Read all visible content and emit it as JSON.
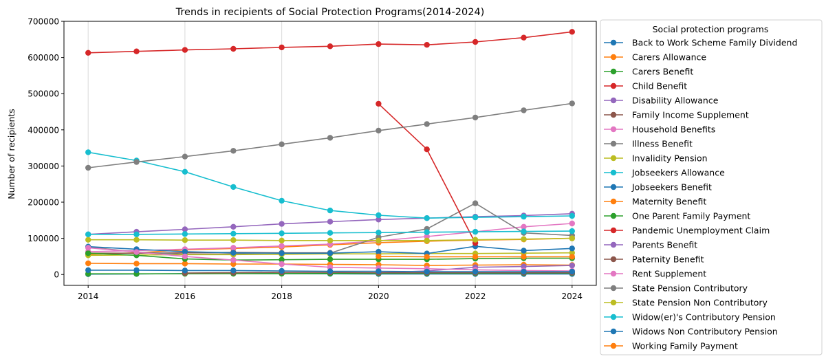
{
  "chart_data": {
    "type": "line",
    "title": "Trends in recipients of Social Protection Programs(2014-2024)",
    "xlabel": "",
    "ylabel": "Number of recipients",
    "xlim": [
      2013.5,
      2024.5
    ],
    "ylim": [
      -30000,
      700000
    ],
    "x_ticks": [
      2014,
      2016,
      2018,
      2020,
      2022,
      2024
    ],
    "y_ticks": [
      0,
      100000,
      200000,
      300000,
      400000,
      500000,
      600000,
      700000
    ],
    "grid": "vertical",
    "legend_title": "Social protection programs",
    "legend_position": "outside-right",
    "x": [
      2014,
      2015,
      2016,
      2017,
      2018,
      2019,
      2020,
      2021,
      2022,
      2023,
      2024
    ],
    "series": [
      {
        "name": "Back to Work Scheme Family Dividend",
        "color": "#1f77b4",
        "values": [
          1000,
          1500,
          2500,
          3000,
          2500,
          2000,
          1500,
          1500,
          1500,
          1500,
          1500
        ]
      },
      {
        "name": "Carers Allowance",
        "color": "#ff7f0e",
        "values": [
          56000,
          60000,
          68000,
          72000,
          76000,
          82000,
          88000,
          92000,
          95000,
          97000,
          100000
        ]
      },
      {
        "name": "Carers Benefit",
        "color": "#2ca02c",
        "values": [
          2000,
          2000,
          2200,
          2400,
          2600,
          2800,
          3000,
          3200,
          3400,
          3600,
          3800
        ]
      },
      {
        "name": "Child Benefit",
        "color": "#d62728",
        "values": [
          613000,
          617000,
          621000,
          624000,
          628000,
          631000,
          637000,
          635000,
          643000,
          655000,
          671000
        ]
      },
      {
        "name": "Disability Allowance",
        "color": "#9467bd",
        "values": [
          111000,
          118000,
          125000,
          132000,
          140000,
          146000,
          152000,
          156000,
          160000,
          163000,
          168000
        ]
      },
      {
        "name": "Family Income Supplement",
        "color": "#8c564b",
        "values": [
          59000,
          59000,
          60000,
          61000,
          60000,
          60000,
          null,
          null,
          null,
          null,
          null
        ]
      },
      {
        "name": "Household Benefits",
        "color": "#e377c2",
        "values": [
          63000,
          66000,
          70000,
          74000,
          79000,
          84000,
          93000,
          105000,
          118000,
          132000,
          141000
        ]
      },
      {
        "name": "Illness Benefit",
        "color": "#7f7f7f",
        "values": [
          76000,
          62000,
          56000,
          57000,
          56000,
          59000,
          103000,
          126000,
          197000,
          115000,
          108000
        ]
      },
      {
        "name": "Invalidity Pension",
        "color": "#bcbd22",
        "values": [
          53000,
          54000,
          55000,
          55000,
          56000,
          57000,
          57000,
          58000,
          58000,
          59000,
          60000
        ]
      },
      {
        "name": "Jobseekers Allowance",
        "color": "#17becf",
        "values": [
          338000,
          315000,
          284000,
          242000,
          204000,
          177000,
          164000,
          156000,
          158000,
          160000,
          162000
        ]
      },
      {
        "name": "Jobseekers Benefit",
        "color": "#1f77b4",
        "values": [
          77000,
          70000,
          63000,
          60000,
          59000,
          59000,
          63000,
          58000,
          78000,
          66000,
          72000
        ]
      },
      {
        "name": "Maternity Benefit",
        "color": "#ff7f0e",
        "values": [
          31000,
          30000,
          30000,
          29000,
          29000,
          28000,
          27000,
          25000,
          26000,
          27000,
          26000
        ]
      },
      {
        "name": "One Parent Family Payment",
        "color": "#2ca02c",
        "values": [
          59000,
          53000,
          43000,
          40000,
          41000,
          42000,
          42000,
          42000,
          44000,
          45000,
          45000
        ]
      },
      {
        "name": "Pandemic Unemployment Claim",
        "color": "#d62728",
        "values": [
          null,
          null,
          null,
          null,
          null,
          null,
          472000,
          346000,
          87000,
          null,
          null
        ]
      },
      {
        "name": "Parents Benefit",
        "color": "#9467bd",
        "values": [
          null,
          null,
          null,
          null,
          null,
          null,
          5000,
          10000,
          20000,
          22000,
          25000
        ]
      },
      {
        "name": "Paternity Benefit",
        "color": "#8c564b",
        "values": [
          null,
          null,
          4000,
          5000,
          6000,
          6000,
          5000,
          5000,
          5000,
          5000,
          5000
        ]
      },
      {
        "name": "Rent Supplement",
        "color": "#e377c2",
        "values": [
          74000,
          62000,
          50000,
          40000,
          29000,
          20000,
          18000,
          16000,
          13000,
          11000,
          10000
        ]
      },
      {
        "name": "State Pension Contributory",
        "color": "#7f7f7f",
        "values": [
          295000,
          311000,
          326000,
          342000,
          360000,
          378000,
          398000,
          416000,
          434000,
          454000,
          473000
        ]
      },
      {
        "name": "State Pension Non Contributory",
        "color": "#bcbd22",
        "values": [
          96000,
          96000,
          95000,
          95000,
          94000,
          94000,
          94000,
          94000,
          96000,
          98000,
          100000
        ]
      },
      {
        "name": "Widow(er)'s Contributory Pension",
        "color": "#17becf",
        "values": [
          111000,
          111000,
          112000,
          113000,
          114000,
          115000,
          116000,
          117000,
          118000,
          119000,
          120000
        ]
      },
      {
        "name": "Widows Non Contributory Pension",
        "color": "#1f77b4",
        "values": [
          12000,
          12000,
          11000,
          11000,
          10000,
          9000,
          9000,
          8000,
          8000,
          8000,
          8000
        ]
      },
      {
        "name": "Working Family Payment",
        "color": "#ff7f0e",
        "values": [
          null,
          null,
          null,
          null,
          null,
          null,
          50000,
          49000,
          49000,
          49000,
          49000
        ]
      }
    ]
  }
}
